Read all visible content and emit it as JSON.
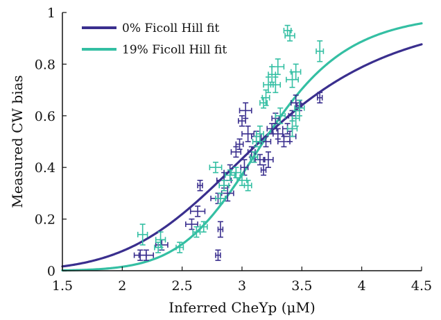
{
  "chart_data": {
    "type": "scatter",
    "xlabel": "Inferred CheYp (μM)",
    "ylabel": "Measured CW bias",
    "xlim": [
      1.5,
      4.5
    ],
    "ylim": [
      0,
      1
    ],
    "x_ticks": [
      "1.5",
      "2",
      "2.5",
      "3",
      "3.5",
      "4",
      "4.5"
    ],
    "y_ticks": [
      "0",
      "0.2",
      "0.4",
      "0.6",
      "0.8",
      "1"
    ],
    "grid": false,
    "legend_position": "top-left",
    "legend": [
      "0% Ficoll Hill fit",
      "19% Ficoll Hill fit"
    ],
    "colors": {
      "ficoll_0": "#3a2f8e",
      "ficoll_19": "#34bfa3",
      "axis": "#111111"
    },
    "fits": [
      {
        "name": "0% Ficoll Hill fit",
        "K": 3.15,
        "n": 5.5
      },
      {
        "name": "19% Ficoll Hill fit",
        "K": 3.18,
        "n": 9.0
      }
    ],
    "series": [
      {
        "name": "0% Ficoll",
        "points": [
          {
            "x": 2.15,
            "y": 0.06,
            "xerr": 0.05,
            "yerr": 0.02
          },
          {
            "x": 2.2,
            "y": 0.06,
            "xerr": 0.06,
            "yerr": 0.02
          },
          {
            "x": 2.33,
            "y": 0.1,
            "xerr": 0.05,
            "yerr": 0.02
          },
          {
            "x": 2.58,
            "y": 0.18,
            "xerr": 0.05,
            "yerr": 0.02
          },
          {
            "x": 2.63,
            "y": 0.23,
            "xerr": 0.06,
            "yerr": 0.02
          },
          {
            "x": 2.65,
            "y": 0.33,
            "xerr": 0.02,
            "yerr": 0.02
          },
          {
            "x": 2.8,
            "y": 0.06,
            "xerr": 0.02,
            "yerr": 0.02
          },
          {
            "x": 2.82,
            "y": 0.16,
            "xerr": 0.02,
            "yerr": 0.03
          },
          {
            "x": 2.8,
            "y": 0.28,
            "xerr": 0.06,
            "yerr": 0.02
          },
          {
            "x": 2.85,
            "y": 0.35,
            "xerr": 0.06,
            "yerr": 0.03
          },
          {
            "x": 2.88,
            "y": 0.3,
            "xerr": 0.05,
            "yerr": 0.03
          },
          {
            "x": 2.9,
            "y": 0.38,
            "xerr": 0.05,
            "yerr": 0.03
          },
          {
            "x": 2.95,
            "y": 0.46,
            "xerr": 0.04,
            "yerr": 0.02
          },
          {
            "x": 2.98,
            "y": 0.49,
            "xerr": 0.03,
            "yerr": 0.02
          },
          {
            "x": 3.0,
            "y": 0.58,
            "xerr": 0.03,
            "yerr": 0.02
          },
          {
            "x": 3.02,
            "y": 0.4,
            "xerr": 0.03,
            "yerr": 0.03
          },
          {
            "x": 3.03,
            "y": 0.62,
            "xerr": 0.05,
            "yerr": 0.03
          },
          {
            "x": 3.05,
            "y": 0.53,
            "xerr": 0.05,
            "yerr": 0.03
          },
          {
            "x": 3.08,
            "y": 0.46,
            "xerr": 0.03,
            "yerr": 0.02
          },
          {
            "x": 3.1,
            "y": 0.44,
            "xerr": 0.03,
            "yerr": 0.02
          },
          {
            "x": 3.12,
            "y": 0.52,
            "xerr": 0.04,
            "yerr": 0.02
          },
          {
            "x": 3.15,
            "y": 0.43,
            "xerr": 0.04,
            "yerr": 0.02
          },
          {
            "x": 3.18,
            "y": 0.39,
            "xerr": 0.02,
            "yerr": 0.02
          },
          {
            "x": 3.2,
            "y": 0.5,
            "xerr": 0.04,
            "yerr": 0.02
          },
          {
            "x": 3.22,
            "y": 0.43,
            "xerr": 0.04,
            "yerr": 0.03
          },
          {
            "x": 3.25,
            "y": 0.55,
            "xerr": 0.04,
            "yerr": 0.02
          },
          {
            "x": 3.28,
            "y": 0.59,
            "xerr": 0.03,
            "yerr": 0.02
          },
          {
            "x": 3.3,
            "y": 0.53,
            "xerr": 0.04,
            "yerr": 0.02
          },
          {
            "x": 3.35,
            "y": 0.5,
            "xerr": 0.05,
            "yerr": 0.02
          },
          {
            "x": 3.38,
            "y": 0.55,
            "xerr": 0.04,
            "yerr": 0.02
          },
          {
            "x": 3.4,
            "y": 0.52,
            "xerr": 0.05,
            "yerr": 0.02
          },
          {
            "x": 3.42,
            "y": 0.6,
            "xerr": 0.03,
            "yerr": 0.02
          },
          {
            "x": 3.45,
            "y": 0.65,
            "xerr": 0.04,
            "yerr": 0.03
          },
          {
            "x": 3.48,
            "y": 0.64,
            "xerr": 0.02,
            "yerr": 0.02
          },
          {
            "x": 3.65,
            "y": 0.67,
            "xerr": 0.02,
            "yerr": 0.02
          }
        ]
      },
      {
        "name": "19% Ficoll",
        "points": [
          {
            "x": 2.17,
            "y": 0.14,
            "xerr": 0.04,
            "yerr": 0.04
          },
          {
            "x": 2.3,
            "y": 0.09,
            "xerr": 0.03,
            "yerr": 0.02
          },
          {
            "x": 2.32,
            "y": 0.12,
            "xerr": 0.04,
            "yerr": 0.03
          },
          {
            "x": 2.48,
            "y": 0.09,
            "xerr": 0.03,
            "yerr": 0.02
          },
          {
            "x": 2.62,
            "y": 0.15,
            "xerr": 0.03,
            "yerr": 0.02
          },
          {
            "x": 2.68,
            "y": 0.17,
            "xerr": 0.03,
            "yerr": 0.02
          },
          {
            "x": 2.78,
            "y": 0.4,
            "xerr": 0.05,
            "yerr": 0.02
          },
          {
            "x": 2.82,
            "y": 0.28,
            "xerr": 0.04,
            "yerr": 0.02
          },
          {
            "x": 2.85,
            "y": 0.33,
            "xerr": 0.04,
            "yerr": 0.02
          },
          {
            "x": 2.9,
            "y": 0.37,
            "xerr": 0.04,
            "yerr": 0.02
          },
          {
            "x": 2.95,
            "y": 0.38,
            "xerr": 0.04,
            "yerr": 0.02
          },
          {
            "x": 3.0,
            "y": 0.35,
            "xerr": 0.04,
            "yerr": 0.02
          },
          {
            "x": 3.05,
            "y": 0.33,
            "xerr": 0.03,
            "yerr": 0.02
          },
          {
            "x": 3.1,
            "y": 0.44,
            "xerr": 0.03,
            "yerr": 0.02
          },
          {
            "x": 3.12,
            "y": 0.5,
            "xerr": 0.03,
            "yerr": 0.02
          },
          {
            "x": 3.15,
            "y": 0.53,
            "xerr": 0.03,
            "yerr": 0.03
          },
          {
            "x": 3.18,
            "y": 0.65,
            "xerr": 0.03,
            "yerr": 0.02
          },
          {
            "x": 3.2,
            "y": 0.67,
            "xerr": 0.03,
            "yerr": 0.03
          },
          {
            "x": 3.22,
            "y": 0.72,
            "xerr": 0.04,
            "yerr": 0.03
          },
          {
            "x": 3.25,
            "y": 0.76,
            "xerr": 0.03,
            "yerr": 0.03
          },
          {
            "x": 3.28,
            "y": 0.72,
            "xerr": 0.04,
            "yerr": 0.03
          },
          {
            "x": 3.3,
            "y": 0.79,
            "xerr": 0.05,
            "yerr": 0.03
          },
          {
            "x": 3.32,
            "y": 0.6,
            "xerr": 0.04,
            "yerr": 0.03
          },
          {
            "x": 3.38,
            "y": 0.93,
            "xerr": 0.03,
            "yerr": 0.02
          },
          {
            "x": 3.4,
            "y": 0.91,
            "xerr": 0.04,
            "yerr": 0.02
          },
          {
            "x": 3.42,
            "y": 0.74,
            "xerr": 0.05,
            "yerr": 0.03
          },
          {
            "x": 3.45,
            "y": 0.77,
            "xerr": 0.04,
            "yerr": 0.03
          },
          {
            "x": 3.42,
            "y": 0.55,
            "xerr": 0.04,
            "yerr": 0.03
          },
          {
            "x": 3.48,
            "y": 0.63,
            "xerr": 0.04,
            "yerr": 0.03
          },
          {
            "x": 3.45,
            "y": 0.59,
            "xerr": 0.03,
            "yerr": 0.03
          },
          {
            "x": 3.65,
            "y": 0.85,
            "xerr": 0.03,
            "yerr": 0.04
          }
        ]
      }
    ]
  }
}
